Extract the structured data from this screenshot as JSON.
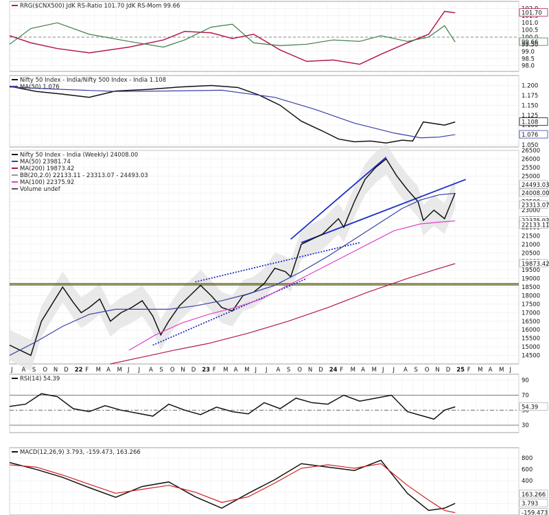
{
  "chart_data": [
    {
      "id": "rrg",
      "type": "line",
      "title": "RRG($CNX500) JdK RS-Ratio 101.70 JdK RS-Mom 99.66",
      "ylim": [
        97.6,
        102.5
      ],
      "y_ticks": [
        "102.0",
        "101.5",
        "101.0",
        "100.5",
        "100.0",
        "99.5",
        "99.0",
        "98.5",
        "98.0"
      ],
      "baseline": 100.0,
      "series": [
        {
          "name": "JdK RS-Ratio",
          "color": "#b5174f",
          "last_label": "101.70",
          "x": [
            0,
            8,
            18,
            30,
            45,
            58,
            66,
            76,
            84,
            92,
            102,
            112,
            122,
            132,
            140,
            150,
            158,
            164,
            168
          ],
          "y": [
            100.1,
            99.6,
            99.2,
            98.9,
            99.3,
            99.8,
            100.4,
            100.3,
            99.9,
            100.2,
            99.1,
            98.3,
            98.4,
            98.1,
            98.8,
            99.6,
            100.2,
            101.8,
            101.7
          ]
        },
        {
          "name": "JdK RS-Mom",
          "color": "#3c7d45",
          "last_label": "99.66",
          "x": [
            0,
            8,
            18,
            30,
            45,
            58,
            66,
            76,
            84,
            92,
            102,
            112,
            122,
            132,
            140,
            150,
            158,
            164,
            168
          ],
          "y": [
            99.5,
            100.6,
            101.0,
            100.2,
            99.7,
            99.3,
            99.8,
            100.7,
            100.9,
            99.6,
            99.4,
            99.5,
            99.8,
            99.7,
            100.1,
            99.7,
            100.0,
            100.8,
            99.66
          ]
        }
      ],
      "flat_labels": [
        "99.50"
      ]
    },
    {
      "id": "ratio",
      "type": "line",
      "title": "Nifty 50 Index - India/Nifty 500 Index - India 1.108",
      "ylim": [
        1.045,
        1.225
      ],
      "y_ticks": [
        "1.200",
        "1.175",
        "1.150",
        "1.125",
        "1.100",
        "1.075",
        "1.050"
      ],
      "series": [
        {
          "name": "Nifty 50 Index - India/Nifty 500 Index - India",
          "color": "#111111",
          "last_label": "1.108",
          "x": [
            0,
            10,
            20,
            30,
            40,
            52,
            64,
            76,
            86,
            94,
            102,
            110,
            118,
            124,
            130,
            136,
            142,
            148,
            152,
            156,
            160,
            164,
            168
          ],
          "y": [
            1.198,
            1.185,
            1.178,
            1.17,
            1.186,
            1.19,
            1.196,
            1.2,
            1.195,
            1.176,
            1.15,
            1.11,
            1.085,
            1.065,
            1.058,
            1.06,
            1.055,
            1.062,
            1.06,
            1.108,
            1.104,
            1.1,
            1.108
          ]
        },
        {
          "name": "MA(50)",
          "color": "#3a3fa6",
          "last_label": "1.076",
          "x": [
            0,
            20,
            40,
            60,
            80,
            100,
            115,
            130,
            145,
            155,
            162,
            168
          ],
          "y": [
            1.196,
            1.19,
            1.185,
            1.186,
            1.188,
            1.17,
            1.14,
            1.105,
            1.08,
            1.068,
            1.07,
            1.076
          ]
        }
      ]
    },
    {
      "id": "price",
      "type": "line",
      "title": "Nifty 50 Index - India (Weekly) 24008.00",
      "ylim": [
        14000,
        26500
      ],
      "y_ticks": [
        "26500",
        "26000",
        "25500",
        "25000",
        "24500",
        "24000",
        "23500",
        "23000",
        "22500",
        "22000",
        "21500",
        "21000",
        "20500",
        "20000",
        "19500",
        "19000",
        "18500",
        "18000",
        "17500",
        "17000",
        "16500",
        "16000",
        "15500",
        "15000",
        "14500"
      ],
      "value_labels": [
        "24493.03",
        "24008.00",
        "23313.07",
        "22375.92",
        "22133.11",
        "19873.42"
      ],
      "legend": [
        {
          "text": "Nifty 50 Index - India (Weekly) 24008.00",
          "color": "#111111"
        },
        {
          "text": "MA(50) 23981.74",
          "color": "#3a3fa6"
        },
        {
          "text": "MA(200) 19873.42",
          "color": "#b5174f"
        },
        {
          "text": "BB(20,2.0) 22133.11 - 23313.07 - 24493.03",
          "color": "#9a9a9a"
        },
        {
          "text": "MA(100) 22375.92",
          "color": "#e040c8"
        },
        {
          "text": "Volume undef",
          "color": "#555555"
        }
      ],
      "horizontal_levels": [
        {
          "value": 18700,
          "color": "#d11f1f"
        },
        {
          "value": 18620,
          "color": "#1f8f1f"
        }
      ],
      "series": [
        {
          "name": "Nifty 50 Index - India (Weekly)",
          "color": "#111111",
          "x": [
            0,
            4,
            8,
            12,
            16,
            20,
            24,
            27,
            30,
            34,
            38,
            42,
            46,
            50,
            54,
            57,
            60,
            64,
            68,
            72,
            76,
            80,
            84,
            88,
            92,
            96,
            100,
            104,
            106,
            110,
            114,
            118,
            120,
            124,
            126,
            130,
            134,
            138,
            142,
            146,
            150,
            154,
            156,
            160,
            164,
            168
          ],
          "y": [
            15100,
            14800,
            14500,
            16500,
            17500,
            18500,
            17600,
            17000,
            17300,
            17800,
            16500,
            17000,
            17300,
            17700,
            16800,
            15700,
            16500,
            17400,
            18000,
            18600,
            18000,
            17300,
            17100,
            18000,
            18200,
            18700,
            19600,
            19400,
            19100,
            21000,
            21300,
            21600,
            21900,
            22500,
            22000,
            23500,
            24800,
            25500,
            26000,
            25000,
            24200,
            23500,
            22400,
            23000,
            22500,
            24008
          ]
        },
        {
          "name": "MA(50)",
          "color": "#3a3fa6",
          "x": [
            0,
            10,
            20,
            30,
            40,
            50,
            60,
            70,
            80,
            90,
            100,
            110,
            120,
            130,
            140,
            148,
            155,
            162,
            168
          ],
          "y": [
            14500,
            15300,
            16200,
            16900,
            17200,
            17200,
            17200,
            17400,
            17700,
            18100,
            18600,
            19400,
            20300,
            21300,
            22300,
            23100,
            23600,
            23900,
            23982
          ]
        },
        {
          "name": "MA(100)",
          "color": "#e040c8",
          "x": [
            45,
            55,
            65,
            75,
            85,
            95,
            105,
            115,
            125,
            135,
            145,
            155,
            162,
            168
          ],
          "y": [
            14800,
            15700,
            16400,
            16900,
            17300,
            17800,
            18600,
            19400,
            20200,
            21000,
            21800,
            22200,
            22300,
            22376
          ]
        },
        {
          "name": "MA(200)",
          "color": "#b5174f",
          "x": [
            38,
            50,
            62,
            75,
            90,
            105,
            120,
            135,
            150,
            160,
            168
          ],
          "y": [
            14000,
            14400,
            14800,
            15200,
            15800,
            16500,
            17300,
            18200,
            19000,
            19500,
            19873
          ]
        }
      ]
    },
    {
      "id": "rsi",
      "type": "line",
      "title": "RSI(14) 54.39",
      "ylim": [
        20,
        98
      ],
      "y_ticks": [
        "90",
        "70",
        "50",
        "30"
      ],
      "value_labels": [
        "54.39"
      ],
      "series": [
        {
          "name": "RSI(14)",
          "color": "#111111",
          "x": [
            0,
            6,
            12,
            18,
            24,
            30,
            36,
            42,
            48,
            54,
            60,
            66,
            72,
            78,
            84,
            90,
            96,
            102,
            108,
            114,
            120,
            126,
            132,
            138,
            144,
            150,
            156,
            160,
            164,
            168
          ],
          "y": [
            55,
            58,
            72,
            68,
            52,
            48,
            56,
            50,
            46,
            42,
            58,
            50,
            44,
            54,
            48,
            45,
            60,
            52,
            66,
            60,
            58,
            70,
            62,
            66,
            70,
            48,
            42,
            38,
            50,
            54.39
          ]
        }
      ],
      "levels": [
        70,
        50,
        30
      ]
    },
    {
      "id": "macd",
      "type": "line",
      "title": "MACD(12,26,9) 3.793, -159.473, 163.266",
      "ylim": [
        -200,
        980
      ],
      "y_ticks": [
        "800",
        "600",
        "400",
        "200",
        "0"
      ],
      "value_labels": [
        "163.266",
        "3.793",
        "-159.473"
      ],
      "series": [
        {
          "name": "MACD",
          "color": "#111111",
          "x": [
            0,
            10,
            20,
            30,
            40,
            50,
            60,
            70,
            80,
            90,
            100,
            110,
            120,
            130,
            140,
            150,
            158,
            164,
            168
          ],
          "y": [
            720,
            600,
            460,
            280,
            110,
            300,
            380,
            120,
            -80,
            180,
            420,
            700,
            640,
            580,
            760,
            180,
            -120,
            -80,
            3.793
          ]
        },
        {
          "name": "Signal",
          "color": "#d11f1f",
          "x": [
            0,
            10,
            20,
            30,
            40,
            50,
            60,
            70,
            80,
            90,
            100,
            110,
            120,
            130,
            140,
            150,
            158,
            164,
            168
          ],
          "y": [
            680,
            640,
            500,
            340,
            180,
            250,
            320,
            200,
            20,
            120,
            360,
            620,
            680,
            620,
            700,
            320,
            60,
            -120,
            -159.473
          ]
        }
      ]
    }
  ],
  "x_axis": {
    "months": [
      "J",
      "A",
      "S",
      "O",
      "N",
      "D",
      "22",
      "F",
      "M",
      "A",
      "M",
      "J",
      "J",
      "A",
      "S",
      "O",
      "N",
      "D",
      "23",
      "F",
      "M",
      "A",
      "M",
      "J",
      "J",
      "A",
      "S",
      "O",
      "N",
      "D",
      "24",
      "F",
      "M",
      "A",
      "M",
      "J",
      "J",
      "A",
      "S",
      "O",
      "N",
      "D",
      "25",
      "F",
      "M",
      "A",
      "M",
      "J",
      "J"
    ],
    "year_labels": [
      "22",
      "23",
      "24",
      "25"
    ]
  }
}
